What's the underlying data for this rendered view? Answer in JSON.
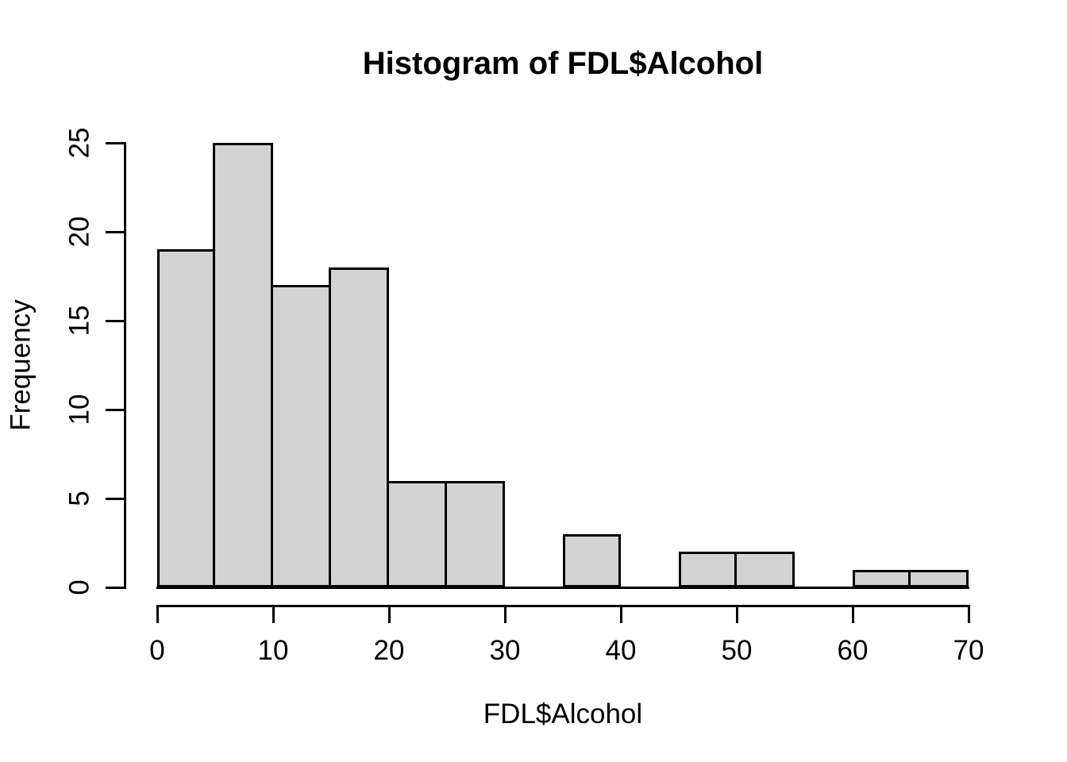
{
  "chart_data": {
    "type": "bar",
    "subtype": "histogram",
    "title": "Histogram of FDL$Alcohol",
    "xlabel": "FDL$Alcohol",
    "ylabel": "Frequency",
    "bin_width": 5,
    "bin_edges": [
      0,
      5,
      10,
      15,
      20,
      25,
      30,
      35,
      40,
      45,
      50,
      55,
      60,
      65,
      70
    ],
    "counts": [
      19,
      25,
      17,
      18,
      6,
      6,
      0,
      3,
      0,
      2,
      2,
      0,
      1,
      1
    ],
    "xlim": [
      0,
      70
    ],
    "ylim": [
      0,
      25
    ],
    "x_ticks": [
      0,
      10,
      20,
      30,
      40,
      50,
      60,
      70
    ],
    "y_ticks": [
      0,
      5,
      10,
      15,
      20,
      25
    ],
    "grid": false,
    "legend_position": "none",
    "bar_fill": "#d3d3d3",
    "bar_border": "#000000",
    "axis_color": "#000000",
    "text_color": "#000000",
    "background": "#ffffff"
  }
}
